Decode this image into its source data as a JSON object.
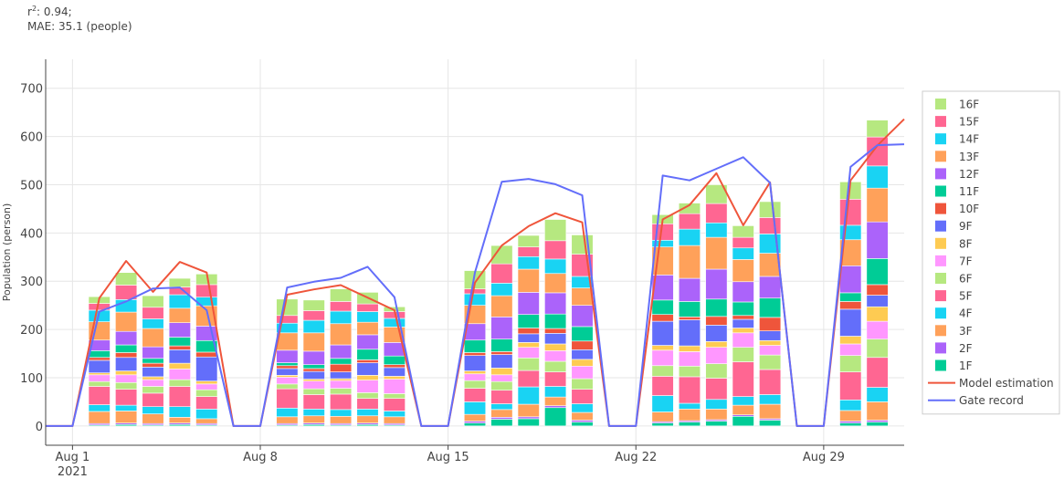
{
  "stats": {
    "r2_label": "r",
    "r2_sup": "2",
    "r2_value": ": 0.94;",
    "mae": "MAE: 35.1 (people)"
  },
  "chart_data": {
    "type": "bar",
    "stacked": true,
    "ylabel": "Population (person)",
    "xlabel": "",
    "ylim": [
      -40,
      760
    ],
    "yticks": [
      0,
      100,
      200,
      300,
      400,
      500,
      600,
      700
    ],
    "xlim": [
      "2021-07-31",
      "2021-09-01"
    ],
    "xticks": [
      {
        "date": "2021-08-01",
        "label": "Aug 1",
        "sublabel": "2021"
      },
      {
        "date": "2021-08-08",
        "label": "Aug 8",
        "sublabel": ""
      },
      {
        "date": "2021-08-15",
        "label": "Aug 15",
        "sublabel": ""
      },
      {
        "date": "2021-08-22",
        "label": "Aug 22",
        "sublabel": ""
      },
      {
        "date": "2021-08-29",
        "label": "Aug 29",
        "sublabel": ""
      }
    ],
    "legend_position": "right",
    "grid": true,
    "dates": [
      "2021-08-02",
      "2021-08-03",
      "2021-08-04",
      "2021-08-05",
      "2021-08-06",
      "2021-08-09",
      "2021-08-10",
      "2021-08-11",
      "2021-08-12",
      "2021-08-13",
      "2021-08-16",
      "2021-08-17",
      "2021-08-18",
      "2021-08-19",
      "2021-08-20",
      "2021-08-23",
      "2021-08-24",
      "2021-08-25",
      "2021-08-26",
      "2021-08-27",
      "2021-08-30",
      "2021-08-31"
    ],
    "series": [
      {
        "name": "1F",
        "color": "#00cc96",
        "values": [
          2,
          3,
          2,
          3,
          2,
          2,
          3,
          2,
          3,
          2,
          6,
          14,
          15,
          38,
          8,
          6,
          8,
          10,
          20,
          12,
          6,
          8
        ]
      },
      {
        "name": "2F",
        "color": "#ab63fa",
        "values": [
          3,
          3,
          3,
          3,
          3,
          3,
          3,
          3,
          3,
          3,
          4,
          4,
          4,
          4,
          4,
          3,
          3,
          3,
          3,
          3,
          4,
          4
        ]
      },
      {
        "name": "3F",
        "color": "#ffa15a",
        "values": [
          25,
          25,
          20,
          12,
          10,
          14,
          15,
          15,
          15,
          14,
          14,
          16,
          26,
          18,
          16,
          20,
          24,
          22,
          20,
          30,
          22,
          38
        ]
      },
      {
        "name": "4F",
        "color": "#19d3f3",
        "values": [
          14,
          12,
          15,
          22,
          20,
          18,
          14,
          14,
          14,
          12,
          26,
          12,
          36,
          22,
          18,
          34,
          12,
          20,
          18,
          20,
          22,
          30
        ]
      },
      {
        "name": "5F",
        "color": "#ff6692",
        "values": [
          38,
          33,
          28,
          42,
          26,
          40,
          30,
          32,
          22,
          26,
          28,
          28,
          34,
          30,
          30,
          40,
          55,
          44,
          72,
          52,
          58,
          62
        ]
      },
      {
        "name": "6F",
        "color": "#b6e880",
        "values": [
          10,
          14,
          14,
          14,
          14,
          10,
          12,
          12,
          12,
          10,
          16,
          18,
          26,
          22,
          22,
          22,
          22,
          30,
          30,
          30,
          34,
          38
        ]
      },
      {
        "name": "7F",
        "color": "#ff97ff",
        "values": [
          14,
          16,
          14,
          22,
          12,
          14,
          16,
          16,
          26,
          30,
          14,
          14,
          22,
          22,
          26,
          32,
          30,
          34,
          30,
          20,
          24,
          37
        ]
      },
      {
        "name": "8F",
        "color": "#fecb52",
        "values": [
          4,
          8,
          6,
          12,
          6,
          4,
          4,
          4,
          10,
          6,
          6,
          14,
          10,
          14,
          14,
          10,
          12,
          12,
          10,
          10,
          16,
          30
        ]
      },
      {
        "name": "9F",
        "color": "#636efa",
        "values": [
          26,
          28,
          20,
          28,
          50,
          14,
          16,
          14,
          26,
          18,
          32,
          28,
          18,
          22,
          20,
          50,
          54,
          34,
          18,
          20,
          56,
          24
        ]
      },
      {
        "name": "10F",
        "color": "#ef553b",
        "values": [
          6,
          10,
          8,
          8,
          10,
          6,
          6,
          16,
          6,
          6,
          6,
          6,
          12,
          10,
          18,
          14,
          6,
          18,
          8,
          28,
          16,
          22
        ]
      },
      {
        "name": "11F",
        "color": "#00cc96",
        "values": [
          14,
          16,
          10,
          18,
          24,
          6,
          8,
          12,
          22,
          18,
          26,
          26,
          28,
          30,
          30,
          30,
          32,
          36,
          28,
          40,
          18,
          54
        ]
      },
      {
        "name": "12F",
        "color": "#ab63fa",
        "values": [
          22,
          28,
          24,
          30,
          30,
          26,
          28,
          28,
          30,
          28,
          34,
          46,
          46,
          44,
          44,
          52,
          48,
          62,
          42,
          45,
          56,
          76
        ]
      },
      {
        "name": "13F",
        "color": "#ffa15a",
        "values": [
          38,
          40,
          38,
          30,
          42,
          36,
          38,
          44,
          26,
          32,
          38,
          44,
          48,
          40,
          36,
          58,
          68,
          66,
          46,
          48,
          54,
          70
        ]
      },
      {
        "name": "14F",
        "color": "#19d3f3",
        "values": [
          24,
          26,
          20,
          28,
          18,
          20,
          26,
          26,
          22,
          18,
          24,
          26,
          26,
          30,
          24,
          14,
          34,
          30,
          24,
          40,
          30,
          46
        ]
      },
      {
        "name": "15F",
        "color": "#ff6692",
        "values": [
          14,
          30,
          24,
          16,
          26,
          16,
          20,
          20,
          16,
          14,
          10,
          40,
          20,
          38,
          46,
          34,
          32,
          40,
          22,
          34,
          54,
          60
        ]
      },
      {
        "name": "16F",
        "color": "#b6e880",
        "values": [
          14,
          26,
          24,
          18,
          22,
          34,
          22,
          26,
          24,
          10,
          38,
          38,
          24,
          44,
          40,
          19,
          22,
          39,
          24,
          33,
          36,
          35
        ]
      }
    ],
    "lines": [
      {
        "name": "Model estimation",
        "color": "#ef553b",
        "x": [
          "2021-07-31",
          "2021-08-01",
          "2021-08-02",
          "2021-08-03",
          "2021-08-04",
          "2021-08-05",
          "2021-08-06",
          "2021-08-07",
          "2021-08-08",
          "2021-08-09",
          "2021-08-10",
          "2021-08-11",
          "2021-08-12",
          "2021-08-13",
          "2021-08-14",
          "2021-08-15",
          "2021-08-16",
          "2021-08-17",
          "2021-08-18",
          "2021-08-19",
          "2021-08-20",
          "2021-08-21",
          "2021-08-22",
          "2021-08-23",
          "2021-08-24",
          "2021-08-25",
          "2021-08-26",
          "2021-08-27",
          "2021-08-28",
          "2021-08-29",
          "2021-08-30",
          "2021-08-31",
          "2021-09-01"
        ],
        "y": [
          0,
          0,
          265,
          342,
          278,
          340,
          318,
          0,
          0,
          272,
          283,
          292,
          266,
          240,
          0,
          0,
          297,
          374,
          414,
          441,
          422,
          0,
          0,
          428,
          458,
          524,
          416,
          505,
          0,
          0,
          509,
          581,
          636
        ]
      },
      {
        "name": "Gate record",
        "color": "#636efa",
        "x": [
          "2021-07-31",
          "2021-08-01",
          "2021-08-02",
          "2021-08-03",
          "2021-08-04",
          "2021-08-05",
          "2021-08-06",
          "2021-08-07",
          "2021-08-08",
          "2021-08-09",
          "2021-08-10",
          "2021-08-11",
          "2021-08-12",
          "2021-08-13",
          "2021-08-14",
          "2021-08-15",
          "2021-08-16",
          "2021-08-17",
          "2021-08-18",
          "2021-08-19",
          "2021-08-20",
          "2021-08-21",
          "2021-08-22",
          "2021-08-23",
          "2021-08-24",
          "2021-08-25",
          "2021-08-26",
          "2021-08-27",
          "2021-08-28",
          "2021-08-29",
          "2021-08-30",
          "2021-08-31",
          "2021-09-01"
        ],
        "y": [
          0,
          0,
          237,
          258,
          285,
          287,
          240,
          0,
          0,
          287,
          299,
          307,
          330,
          267,
          0,
          0,
          318,
          506,
          512,
          501,
          478,
          0,
          0,
          519,
          509,
          533,
          557,
          504,
          0,
          0,
          537,
          582,
          584
        ]
      }
    ]
  }
}
